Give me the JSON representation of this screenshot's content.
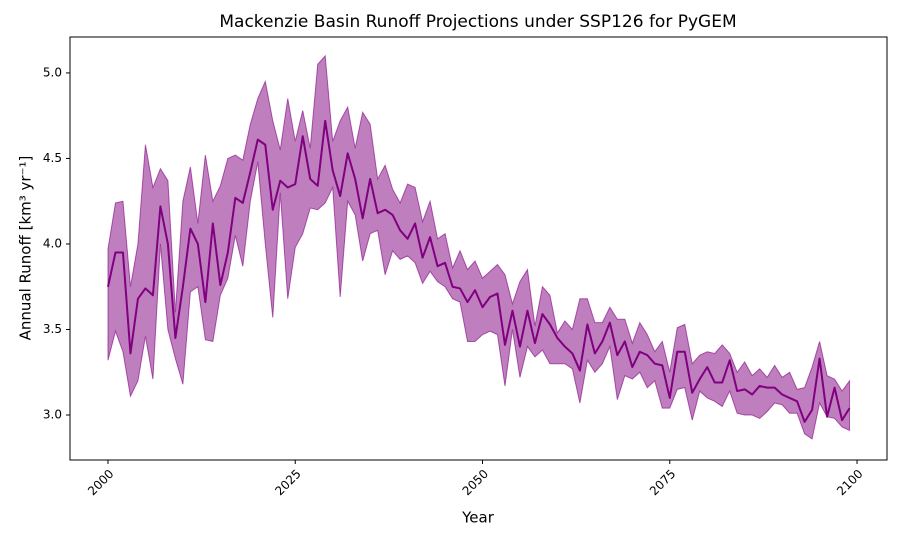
{
  "chart_data": {
    "type": "line",
    "title": "Mackenzie Basin Runoff Projections under SSP126 for PyGEM",
    "xlabel": "Year",
    "ylabel": "Annual Runoff [km³ yr⁻¹]",
    "x": [
      2000,
      2001,
      2002,
      2003,
      2004,
      2005,
      2006,
      2007,
      2008,
      2009,
      2010,
      2011,
      2012,
      2013,
      2014,
      2015,
      2016,
      2017,
      2018,
      2019,
      2020,
      2021,
      2022,
      2023,
      2024,
      2025,
      2026,
      2027,
      2028,
      2029,
      2030,
      2031,
      2032,
      2033,
      2034,
      2035,
      2036,
      2037,
      2038,
      2039,
      2040,
      2041,
      2042,
      2043,
      2044,
      2045,
      2046,
      2047,
      2048,
      2049,
      2050,
      2051,
      2052,
      2053,
      2054,
      2055,
      2056,
      2057,
      2058,
      2059,
      2060,
      2061,
      2062,
      2063,
      2064,
      2065,
      2066,
      2067,
      2068,
      2069,
      2070,
      2071,
      2072,
      2073,
      2074,
      2075,
      2076,
      2077,
      2078,
      2079,
      2080,
      2081,
      2082,
      2083,
      2084,
      2085,
      2086,
      2087,
      2088,
      2089,
      2090,
      2091,
      2092,
      2093,
      2094,
      2095,
      2096,
      2097,
      2098,
      2099
    ],
    "series": [
      {
        "color": "#800080",
        "values": [
          3.75,
          3.95,
          3.95,
          3.36,
          3.68,
          3.74,
          3.7,
          4.22,
          4.0,
          3.45,
          3.75,
          4.09,
          4.0,
          3.66,
          4.12,
          3.76,
          3.95,
          4.27,
          4.24,
          4.42,
          4.61,
          4.58,
          4.2,
          4.37,
          4.33,
          4.35,
          4.63,
          4.38,
          4.34,
          4.72,
          4.43,
          4.28,
          4.53,
          4.38,
          4.15,
          4.38,
          4.18,
          4.2,
          4.17,
          4.08,
          4.03,
          4.12,
          3.92,
          4.04,
          3.87,
          3.89,
          3.75,
          3.74,
          3.66,
          3.73,
          3.63,
          3.69,
          3.71,
          3.41,
          3.61,
          3.4,
          3.61,
          3.42,
          3.59,
          3.53,
          3.45,
          3.4,
          3.36,
          3.26,
          3.53,
          3.36,
          3.43,
          3.54,
          3.35,
          3.43,
          3.28,
          3.37,
          3.35,
          3.3,
          3.29,
          3.1,
          3.37,
          3.37,
          3.13,
          3.21,
          3.28,
          3.19,
          3.19,
          3.32,
          3.14,
          3.15,
          3.12,
          3.17,
          3.16,
          3.16,
          3.12,
          3.1,
          3.08,
          2.96,
          3.03,
          3.33,
          2.99,
          3.16,
          2.97,
          3.04
        ]
      }
    ],
    "band": {
      "color": "#800080",
      "upper": [
        3.97,
        4.24,
        4.25,
        3.75,
        4.0,
        4.58,
        4.33,
        4.44,
        4.37,
        3.6,
        4.25,
        4.45,
        4.12,
        4.52,
        4.25,
        4.34,
        4.5,
        4.52,
        4.49,
        4.7,
        4.85,
        4.95,
        4.72,
        4.55,
        4.85,
        4.6,
        4.78,
        4.56,
        5.05,
        5.1,
        4.6,
        4.72,
        4.8,
        4.56,
        4.77,
        4.7,
        4.38,
        4.46,
        4.32,
        4.24,
        4.35,
        4.33,
        4.13,
        4.25,
        4.03,
        4.06,
        3.86,
        3.96,
        3.85,
        3.9,
        3.8,
        3.84,
        3.88,
        3.82,
        3.65,
        3.78,
        3.85,
        3.52,
        3.75,
        3.7,
        3.48,
        3.55,
        3.5,
        3.68,
        3.68,
        3.54,
        3.54,
        3.63,
        3.56,
        3.56,
        3.42,
        3.54,
        3.47,
        3.37,
        3.43,
        3.25,
        3.51,
        3.53,
        3.3,
        3.35,
        3.37,
        3.36,
        3.41,
        3.36,
        3.25,
        3.31,
        3.23,
        3.27,
        3.22,
        3.29,
        3.22,
        3.25,
        3.15,
        3.16,
        3.28,
        3.43,
        3.23,
        3.21,
        3.14,
        3.2
      ],
      "lower": [
        3.32,
        3.49,
        3.37,
        3.11,
        3.2,
        3.46,
        3.21,
        4.0,
        3.5,
        3.33,
        3.18,
        3.72,
        3.75,
        3.44,
        3.43,
        3.7,
        3.8,
        4.05,
        3.87,
        4.25,
        4.48,
        4.0,
        3.57,
        4.3,
        3.68,
        3.98,
        4.06,
        4.21,
        4.2,
        4.24,
        4.33,
        3.69,
        4.25,
        4.17,
        3.9,
        4.06,
        4.08,
        3.82,
        3.96,
        3.91,
        3.93,
        3.89,
        3.77,
        3.84,
        3.78,
        3.75,
        3.68,
        3.66,
        3.43,
        3.43,
        3.47,
        3.49,
        3.47,
        3.17,
        3.5,
        3.22,
        3.4,
        3.34,
        3.38,
        3.3,
        3.3,
        3.3,
        3.27,
        3.07,
        3.32,
        3.25,
        3.3,
        3.4,
        3.09,
        3.23,
        3.21,
        3.25,
        3.16,
        3.2,
        3.04,
        3.04,
        3.15,
        3.16,
        2.97,
        3.14,
        3.1,
        3.08,
        3.05,
        3.14,
        3.01,
        3.0,
        3.0,
        2.98,
        3.02,
        3.07,
        3.06,
        3.01,
        3.01,
        2.89,
        2.86,
        3.07,
        2.99,
        2.98,
        2.93,
        2.91
      ]
    },
    "xlim": [
      1994.93,
      2104.0
    ],
    "ylim": [
      2.737,
      5.21
    ],
    "xticks": [
      2000,
      2025,
      2050,
      2075,
      2100
    ],
    "yticks": [
      {
        "value": 3,
        "label": "3.0"
      },
      3.5,
      {
        "value": 4,
        "label": "4.0"
      },
      4.5,
      {
        "value": 5,
        "label": "5.0"
      }
    ]
  }
}
